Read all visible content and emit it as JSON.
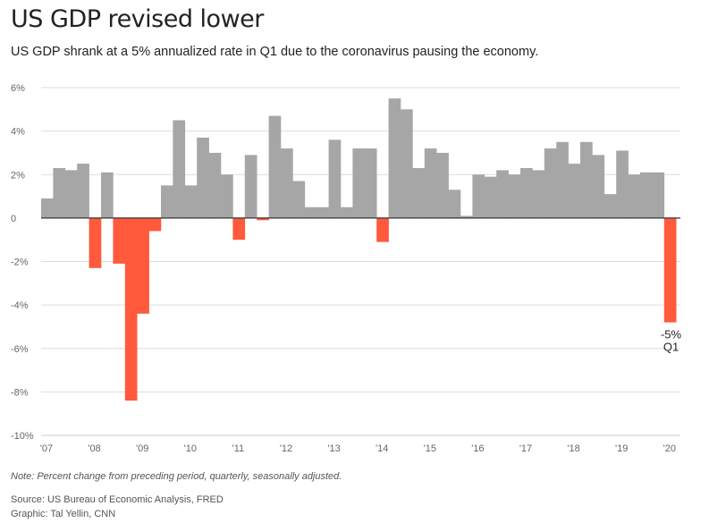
{
  "header": {
    "title": "US GDP revised lower",
    "subtitle": "US GDP shrank at a 5% annualized rate in Q1 due to the coronavirus pausing the economy."
  },
  "footer": {
    "note": "Note: Percent change from preceding period, quarterly, seasonally adjusted.",
    "source": "Source: US Bureau of Economic Analysis, FRED",
    "credit": "Graphic: Tal Yellin, CNN"
  },
  "colors": {
    "positive": "#a6a6a6",
    "negative": "#ff5a3c",
    "grid": "#dddddd",
    "axis": "#333333",
    "tick_text": "#666666"
  },
  "chart_data": {
    "type": "bar",
    "title": "US GDP revised lower",
    "xlabel": "",
    "ylabel": "",
    "ylim": [
      -10,
      6
    ],
    "y_ticks": [
      6,
      4,
      2,
      0,
      -2,
      -4,
      -6,
      -8,
      -10
    ],
    "y_tick_labels": [
      "6%",
      "4%",
      "2%",
      "0",
      "-2%",
      "-4%",
      "-6%",
      "-8%",
      "-10%"
    ],
    "x_tick_labels": [
      "'07",
      "'08",
      "'09",
      "'10",
      "'11",
      "'12",
      "'13",
      "'14",
      "'15",
      "'16",
      "'17",
      "'18",
      "'19",
      "'20"
    ],
    "grid": true,
    "categories": [
      "2007 Q1",
      "2007 Q2",
      "2007 Q3",
      "2007 Q4",
      "2008 Q1",
      "2008 Q2",
      "2008 Q3",
      "2008 Q4",
      "2009 Q1",
      "2009 Q2",
      "2009 Q3",
      "2009 Q4",
      "2010 Q1",
      "2010 Q2",
      "2010 Q3",
      "2010 Q4",
      "2011 Q1",
      "2011 Q2",
      "2011 Q3",
      "2011 Q4",
      "2012 Q1",
      "2012 Q2",
      "2012 Q3",
      "2012 Q4",
      "2013 Q1",
      "2013 Q2",
      "2013 Q3",
      "2013 Q4",
      "2014 Q1",
      "2014 Q2",
      "2014 Q3",
      "2014 Q4",
      "2015 Q1",
      "2015 Q2",
      "2015 Q3",
      "2015 Q4",
      "2016 Q1",
      "2016 Q2",
      "2016 Q3",
      "2016 Q4",
      "2017 Q1",
      "2017 Q2",
      "2017 Q3",
      "2017 Q4",
      "2018 Q1",
      "2018 Q2",
      "2018 Q3",
      "2018 Q4",
      "2019 Q1",
      "2019 Q2",
      "2019 Q3",
      "2019 Q4",
      "2020 Q1"
    ],
    "values": [
      0.9,
      2.3,
      2.2,
      2.5,
      -2.3,
      2.1,
      -2.1,
      -8.4,
      -4.4,
      -0.6,
      1.5,
      4.5,
      1.5,
      3.7,
      3.0,
      2.0,
      -1.0,
      2.9,
      -0.1,
      4.7,
      3.2,
      1.7,
      0.5,
      0.5,
      3.6,
      0.5,
      3.2,
      3.2,
      -1.1,
      5.5,
      5.0,
      2.3,
      3.2,
      3.0,
      1.3,
      0.1,
      2.0,
      1.9,
      2.2,
      2.0,
      2.3,
      2.2,
      3.2,
      3.5,
      2.5,
      3.5,
      2.9,
      1.1,
      3.1,
      2.0,
      2.1,
      2.1,
      -4.8
    ],
    "annotations": [
      {
        "category": "2020 Q1",
        "lines": [
          "-5%",
          "Q1"
        ]
      }
    ]
  }
}
